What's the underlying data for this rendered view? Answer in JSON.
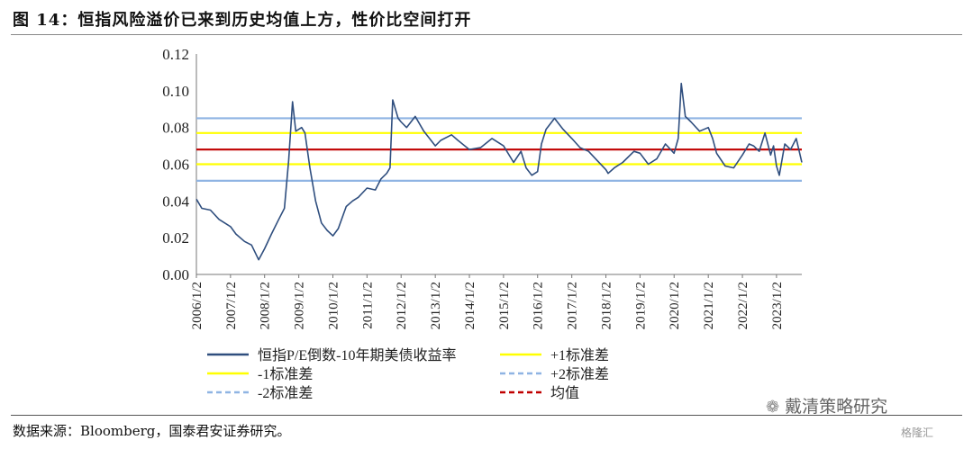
{
  "figure": {
    "title": "图 14：恒指风险溢价已来到历史均值上方，性价比空间打开",
    "source": "数据来源：Bloomberg，国泰君安证券研究。",
    "watermark": "戴清策略研究",
    "watermark_icon": "wechat-icon",
    "watermark2": "格隆汇"
  },
  "chart_data": {
    "type": "line",
    "title": "",
    "xlabel": "",
    "ylabel": "",
    "ylim": [
      0,
      0.12
    ],
    "yticks": [
      0.0,
      0.02,
      0.04,
      0.06,
      0.08,
      0.1,
      0.12
    ],
    "ytick_labels": [
      "0.00",
      "0.02",
      "0.04",
      "0.06",
      "0.08",
      "0.10",
      "0.12"
    ],
    "xlim": [
      "2006/1/2",
      "2023/9/30"
    ],
    "xticks": [
      "2006/1/2",
      "2007/1/2",
      "2008/1/2",
      "2009/1/2",
      "2010/1/2",
      "2011/1/2",
      "2012/1/2",
      "2013/1/2",
      "2014/1/2",
      "2015/1/2",
      "2016/1/2",
      "2017/1/2",
      "2018/1/2",
      "2019/1/2",
      "2020/1/2",
      "2021/1/2",
      "2022/1/2",
      "2023/1/2"
    ],
    "grid": false,
    "legend_position": "bottom",
    "series": [
      {
        "name": "恒指P/E倒数-10年期美债收益率",
        "color": "#2f4e7e",
        "style": "solid",
        "x": [
          "2006/1/2",
          "2006/3/1",
          "2006/6/1",
          "2006/9/1",
          "2007/1/2",
          "2007/3/1",
          "2007/6/1",
          "2007/8/15",
          "2007/10/30",
          "2008/1/2",
          "2008/3/15",
          "2008/6/1",
          "2008/8/1",
          "2008/9/15",
          "2008/10/27",
          "2008/12/1",
          "2009/2/1",
          "2009/3/9",
          "2009/5/1",
          "2009/7/1",
          "2009/9/1",
          "2009/11/1",
          "2010/1/2",
          "2010/3/1",
          "2010/5/25",
          "2010/8/1",
          "2010/10/1",
          "2011/1/2",
          "2011/4/1",
          "2011/6/1",
          "2011/8/1",
          "2011/9/5",
          "2011/10/4",
          "2011/12/1",
          "2012/1/2",
          "2012/3/1",
          "2012/6/1",
          "2012/9/1",
          "2013/1/2",
          "2013/3/1",
          "2013/6/25",
          "2013/9/1",
          "2014/1/2",
          "2014/5/1",
          "2014/9/1",
          "2015/1/2",
          "2015/4/20",
          "2015/7/8",
          "2015/9/1",
          "2015/11/1",
          "2016/1/2",
          "2016/2/12",
          "2016/4/1",
          "2016/7/1",
          "2016/10/1",
          "2017/1/2",
          "2017/4/1",
          "2017/7/1",
          "2017/10/1",
          "2018/1/2",
          "2018/1/26",
          "2018/4/1",
          "2018/7/1",
          "2018/10/30",
          "2019/1/2",
          "2019/4/1",
          "2019/7/1",
          "2019/10/1",
          "2020/1/2",
          "2020/2/15",
          "2020/3/19",
          "2020/5/1",
          "2020/7/1",
          "2020/10/1",
          "2021/1/2",
          "2021/2/17",
          "2021/4/1",
          "2021/7/1",
          "2021/10/1",
          "2022/1/2",
          "2022/3/15",
          "2022/5/1",
          "2022/7/1",
          "2022/9/1",
          "2022/10/31",
          "2022/12/1",
          "2023/1/2",
          "2023/2/1",
          "2023/4/1",
          "2023/6/1",
          "2023/8/1",
          "2023/9/30"
        ],
        "values": [
          0.041,
          0.036,
          0.035,
          0.03,
          0.026,
          0.022,
          0.018,
          0.016,
          0.008,
          0.014,
          0.022,
          0.03,
          0.036,
          0.062,
          0.094,
          0.078,
          0.08,
          0.077,
          0.058,
          0.04,
          0.028,
          0.024,
          0.021,
          0.025,
          0.037,
          0.04,
          0.042,
          0.047,
          0.046,
          0.052,
          0.055,
          0.058,
          0.095,
          0.085,
          0.083,
          0.08,
          0.086,
          0.078,
          0.07,
          0.073,
          0.076,
          0.073,
          0.068,
          0.069,
          0.074,
          0.07,
          0.061,
          0.067,
          0.058,
          0.054,
          0.056,
          0.071,
          0.079,
          0.085,
          0.079,
          0.074,
          0.069,
          0.067,
          0.062,
          0.057,
          0.055,
          0.058,
          0.061,
          0.067,
          0.066,
          0.06,
          0.063,
          0.071,
          0.066,
          0.074,
          0.104,
          0.086,
          0.083,
          0.078,
          0.08,
          0.074,
          0.066,
          0.059,
          0.058,
          0.065,
          0.071,
          0.07,
          0.067,
          0.077,
          0.065,
          0.07,
          0.059,
          0.054,
          0.071,
          0.068,
          0.074,
          0.061
        ]
      },
      {
        "name": "+1标准差",
        "color": "#ffff00",
        "style": "solid",
        "value": 0.077
      },
      {
        "name": "-1标准差",
        "color": "#ffff00",
        "style": "solid",
        "value": 0.06
      },
      {
        "name": "+2标准差",
        "color": "#8fb4e3",
        "style": "dashed",
        "value": 0.085
      },
      {
        "name": "-2标准差",
        "color": "#8fb4e3",
        "style": "dashed",
        "value": 0.051
      },
      {
        "name": "均值",
        "color": "#c00000",
        "style": "dashed",
        "value": 0.068
      }
    ]
  }
}
